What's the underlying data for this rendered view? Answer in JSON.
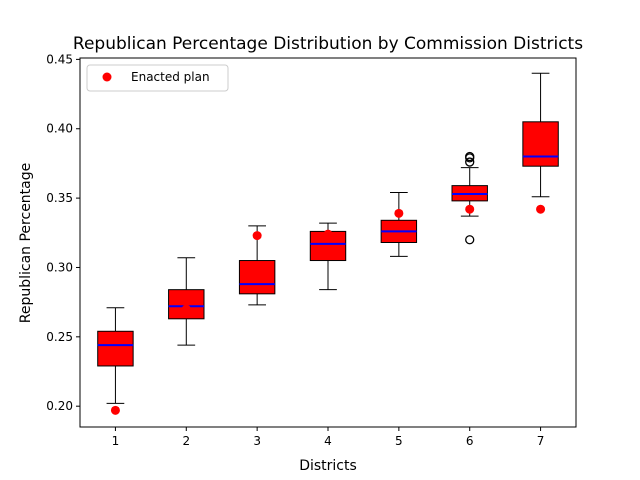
{
  "chart_data": {
    "type": "box",
    "title": "Republican Percentage Distribution by Commission Districts",
    "xlabel": "Districts",
    "ylabel": "Republican Percentage",
    "categories": [
      "1",
      "2",
      "3",
      "4",
      "5",
      "6",
      "7"
    ],
    "ylim": [
      0.185,
      0.451
    ],
    "yticks": [
      "0.20",
      "0.25",
      "0.30",
      "0.35",
      "0.40",
      "0.45"
    ],
    "ytick_values": [
      0.2,
      0.25,
      0.3,
      0.35,
      0.4,
      0.45
    ],
    "grid": false,
    "legend": {
      "placement": "top-left",
      "entries": [
        "Enacted plan"
      ]
    },
    "colors": {
      "box_fill": "#ff0000",
      "median": "#0000ff",
      "enacted": "#ff0000",
      "outline": "#000000"
    },
    "boxes": [
      {
        "category": "1",
        "whisker_low": 0.202,
        "q1": 0.229,
        "median": 0.244,
        "q3": 0.254,
        "whisker_high": 0.271,
        "outliers": []
      },
      {
        "category": "2",
        "whisker_low": 0.244,
        "q1": 0.263,
        "median": 0.272,
        "q3": 0.284,
        "whisker_high": 0.307,
        "outliers": []
      },
      {
        "category": "3",
        "whisker_low": 0.273,
        "q1": 0.281,
        "median": 0.288,
        "q3": 0.305,
        "whisker_high": 0.33,
        "outliers": []
      },
      {
        "category": "4",
        "whisker_low": 0.284,
        "q1": 0.305,
        "median": 0.317,
        "q3": 0.326,
        "whisker_high": 0.332,
        "outliers": []
      },
      {
        "category": "5",
        "whisker_low": 0.308,
        "q1": 0.318,
        "median": 0.326,
        "q3": 0.334,
        "whisker_high": 0.354,
        "outliers": []
      },
      {
        "category": "6",
        "whisker_low": 0.337,
        "q1": 0.348,
        "median": 0.353,
        "q3": 0.359,
        "whisker_high": 0.372,
        "outliers": [
          0.32,
          0.376,
          0.379,
          0.38
        ]
      },
      {
        "category": "7",
        "whisker_low": 0.351,
        "q1": 0.373,
        "median": 0.38,
        "q3": 0.405,
        "whisker_high": 0.44,
        "outliers": []
      }
    ],
    "enacted_plan": [
      0.197,
      0.27,
      0.323,
      0.324,
      0.339,
      0.342,
      0.342
    ]
  }
}
